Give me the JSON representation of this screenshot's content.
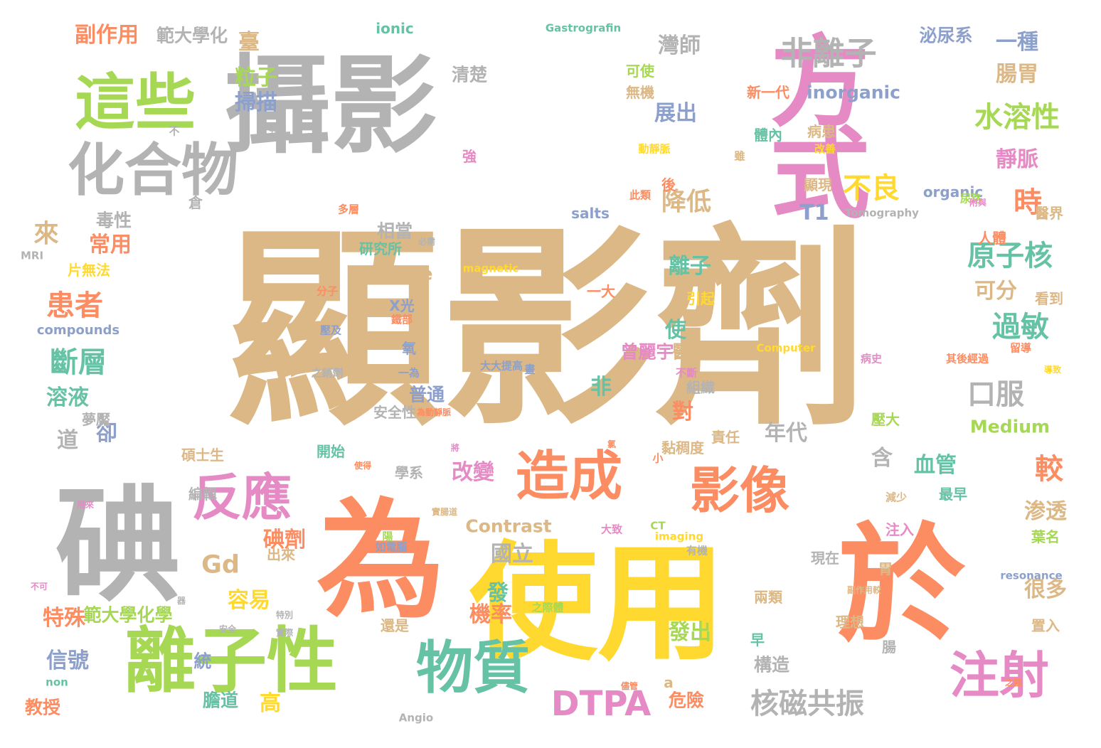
{
  "palette": {
    "tan": "#dcb886",
    "gray": "#b3b3b3",
    "pink": "#e58ac5",
    "green": "#a6d854",
    "orange": "#fc8d62",
    "yellow": "#ffd92f",
    "teal": "#66c2a5",
    "blue": "#8da0cb"
  },
  "words": [
    "顯影劑",
    "攝影",
    "方式",
    "為",
    "使用",
    "於",
    "碘",
    "這些",
    "化合物",
    "離子性",
    "物質",
    "造成",
    "影像",
    "反應",
    "注射",
    "非離子",
    "DTPA",
    "核磁共振",
    "水溶性",
    "過敏",
    "原子核",
    "口服",
    "斷層",
    "患者",
    "腸胃",
    "一種",
    "臺",
    "灣師",
    "靜脈",
    "時",
    "不良",
    "降低",
    "較",
    "含",
    "血管",
    "碘劑",
    "改變",
    "機率",
    "容易",
    "特殊",
    "溶液",
    "信號",
    "Gd",
    "來",
    "常用",
    "副作用",
    "範大學化",
    "粒子",
    "掃描",
    "展出",
    "年代",
    "國立",
    "發",
    "發出",
    "高",
    "渗透",
    "很多",
    "可分",
    "對",
    "非",
    "使",
    "離子",
    "普通",
    "卻",
    "道",
    "範大學化學",
    "教授",
    "膽道",
    "統",
    "危險",
    "構造",
    "e",
    "T1",
    "毒性",
    "相當",
    "研究所",
    "清楚",
    "泌尿系",
    "inorganic",
    "organic",
    "無機",
    "體內",
    "新一代",
    "病患",
    "顯現",
    "腸",
    "Contrast",
    "Medium",
    "salts",
    "可使",
    "片無法",
    "compounds",
    "X光",
    "氧",
    "一為",
    "曾麗宇",
    "醫師",
    "組織",
    "安全性",
    "開始",
    "碩士生",
    "夢魘",
    "學系",
    "編輯",
    "出來",
    "責任",
    "黏稠度",
    "理想",
    "兩類",
    "現在",
    "引起",
    "看到",
    "一大",
    "醫界",
    "人體",
    "尿路",
    "注入",
    "減少",
    "最早",
    "葉名",
    "置入",
    "胃",
    "壓大",
    "還是",
    "早",
    "a",
    "non",
    "ionic",
    "Tomography",
    "Computer",
    "CT",
    "imaging",
    "resonance",
    "magnetic",
    "MRI",
    "Angio",
    "Gastrografin",
    "大大提高",
    "壓及",
    "之銷劑",
    "如電腦",
    "大致",
    "分子",
    "強",
    "後",
    "多層",
    "此類",
    "動靜脈",
    "改善",
    "雖",
    "倉",
    "不",
    "分散",
    "必需",
    "鐵部",
    "有機",
    "不斷",
    "其後經過",
    "之際體",
    "小",
    "畫",
    "器",
    "儘管",
    "陽",
    "實腸道",
    "留導",
    "病史",
    "不可",
    "特別",
    "用來",
    "安全",
    "實際",
    "導致",
    "為動靜脈",
    "氯",
    "副作用較",
    "使得",
    "之腦",
    "將",
    "附與"
  ]
}
